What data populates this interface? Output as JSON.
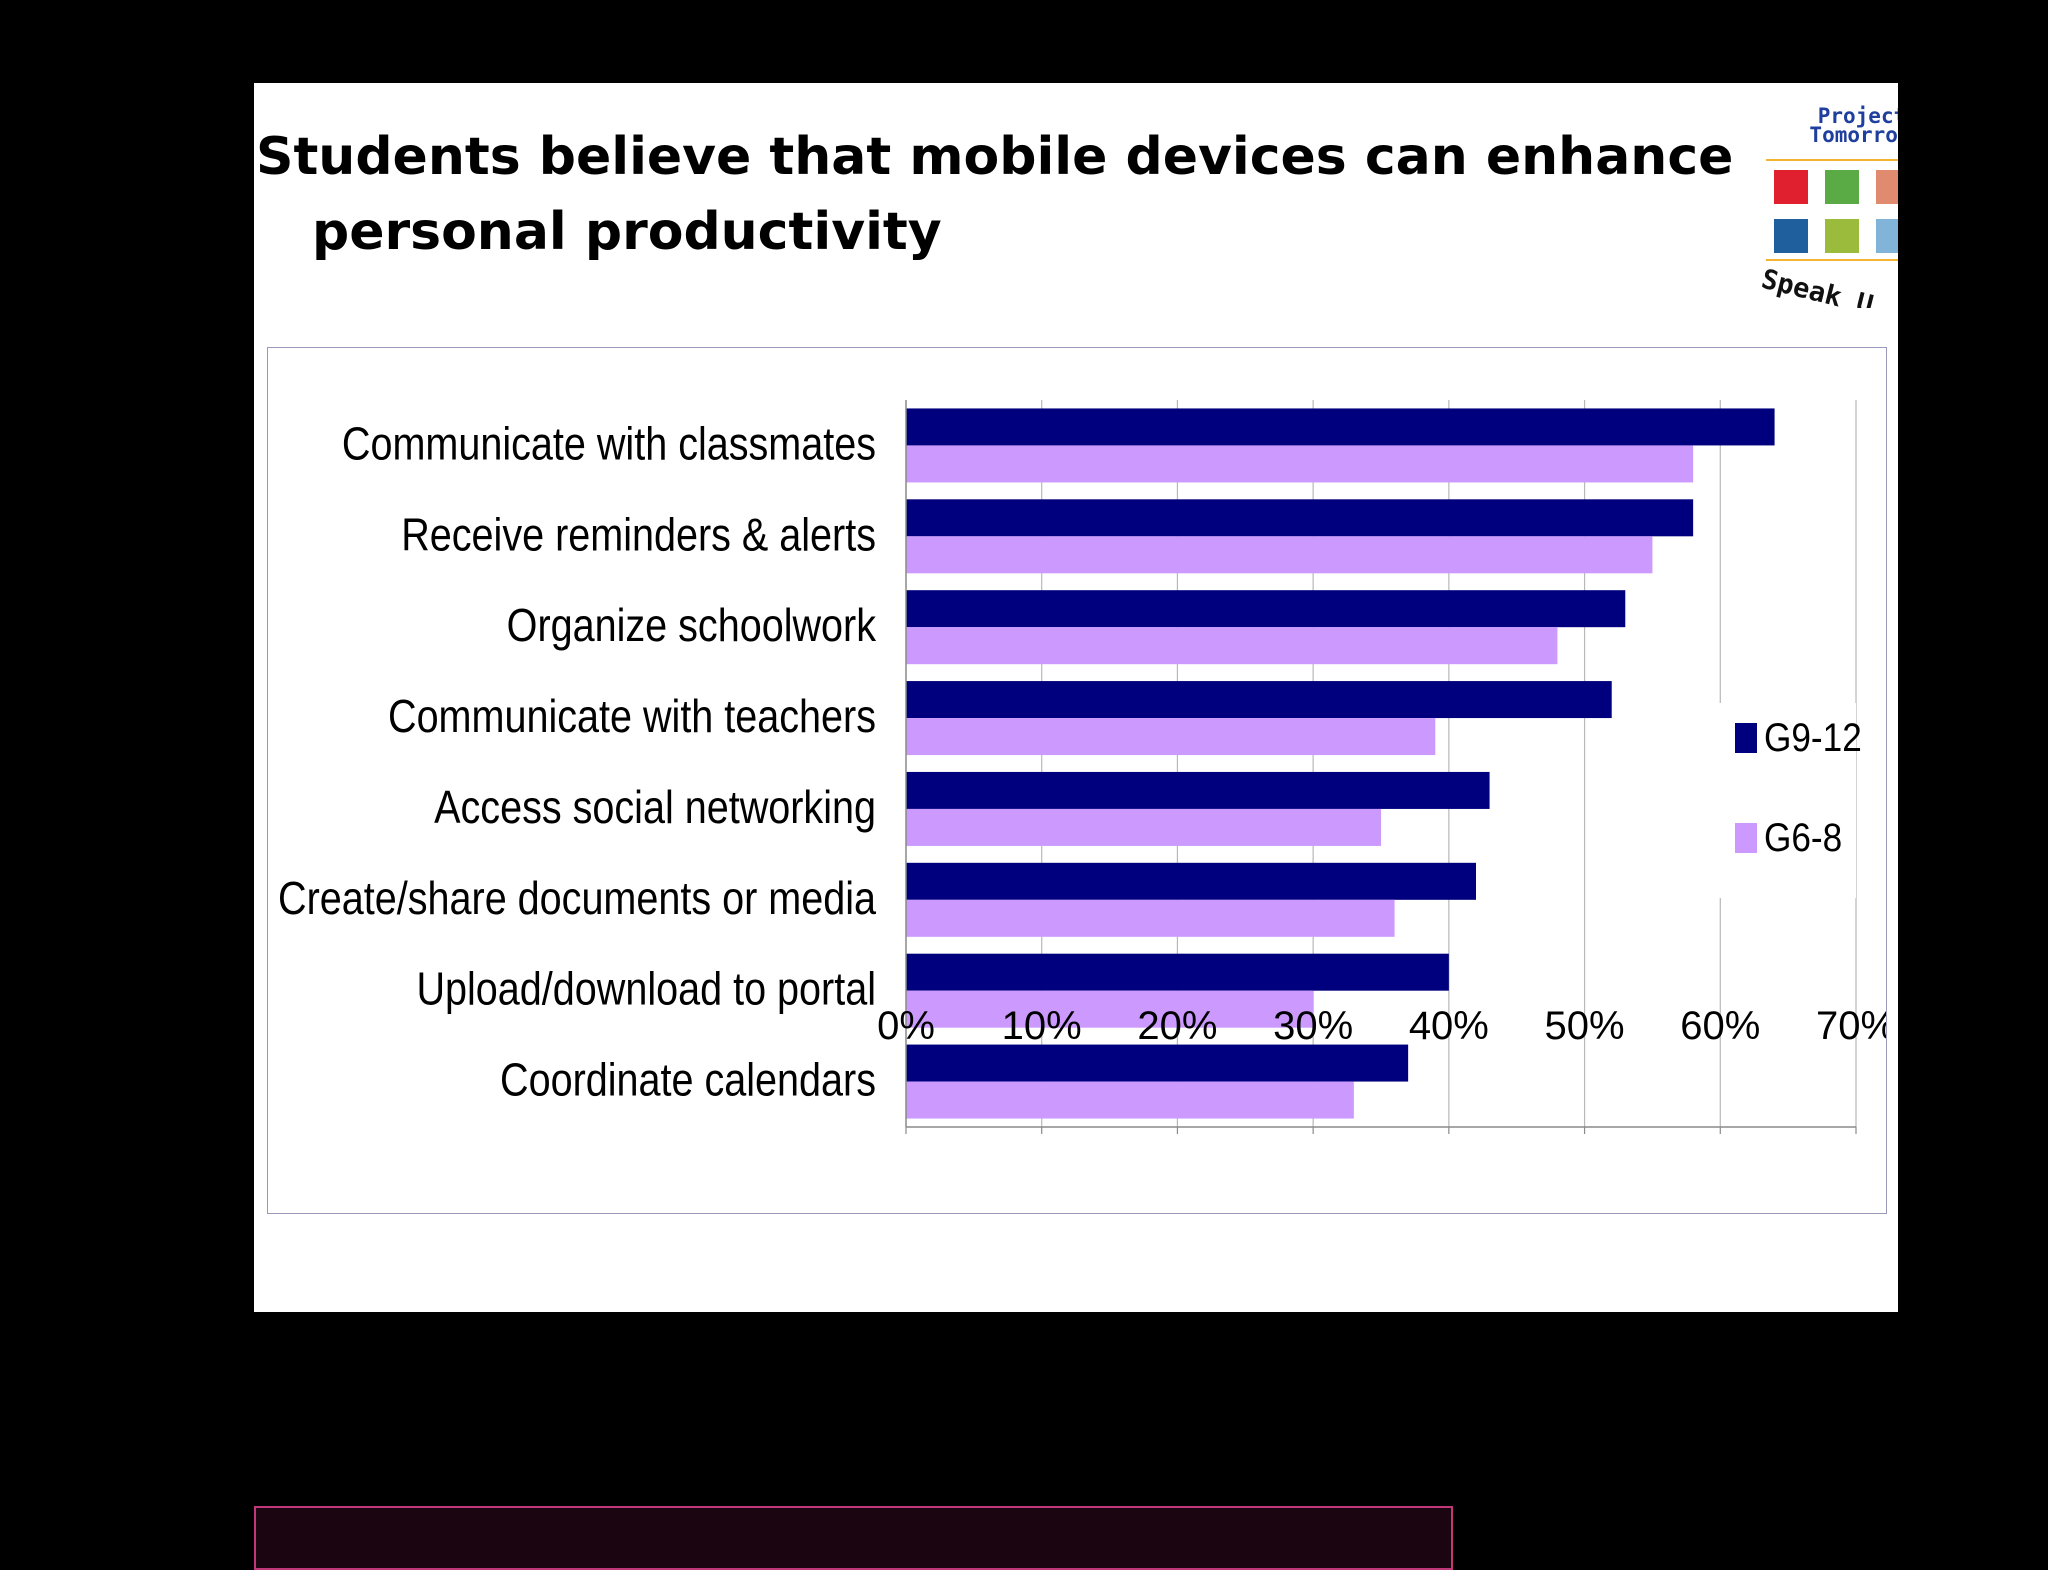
{
  "slide": {
    "title_line_1": "Students believe that mobile devices can enhance",
    "title_line_2": "personal productivity"
  },
  "logo": {
    "line_1": "Project",
    "line_2": "Tomorrow",
    "tagline": "Speak U",
    "square_colors": [
      "#e0202e",
      "#5aab46",
      "#e08a70",
      "#1f5f9e",
      "#9bbb3c",
      "#82b4d9"
    ],
    "accent_color": "#f2b431"
  },
  "colors": {
    "g9_12": "#00007f",
    "g6_8": "#cc99ff",
    "gridline": "#b8b8b8",
    "axis": "#8a8a8a"
  },
  "chart_data": {
    "type": "bar",
    "orientation": "horizontal",
    "categories": [
      "Communicate with classmates",
      "Receive reminders & alerts",
      "Organize schoolwork",
      "Communicate with teachers",
      "Access social networking",
      "Create/share documents or media",
      "Upload/download to portal",
      "Coordinate calendars"
    ],
    "series": [
      {
        "name": "G9-12",
        "values": [
          64,
          58,
          53,
          52,
          43,
          42,
          40,
          37
        ]
      },
      {
        "name": "G6-8",
        "values": [
          58,
          55,
          48,
          39,
          35,
          36,
          30,
          33
        ]
      }
    ],
    "xlim": [
      0,
      70
    ],
    "x_ticks": [
      "0%",
      "10%",
      "20%",
      "30%",
      "40%",
      "50%",
      "60%",
      "70%"
    ],
    "grid": true,
    "legend": "right"
  }
}
